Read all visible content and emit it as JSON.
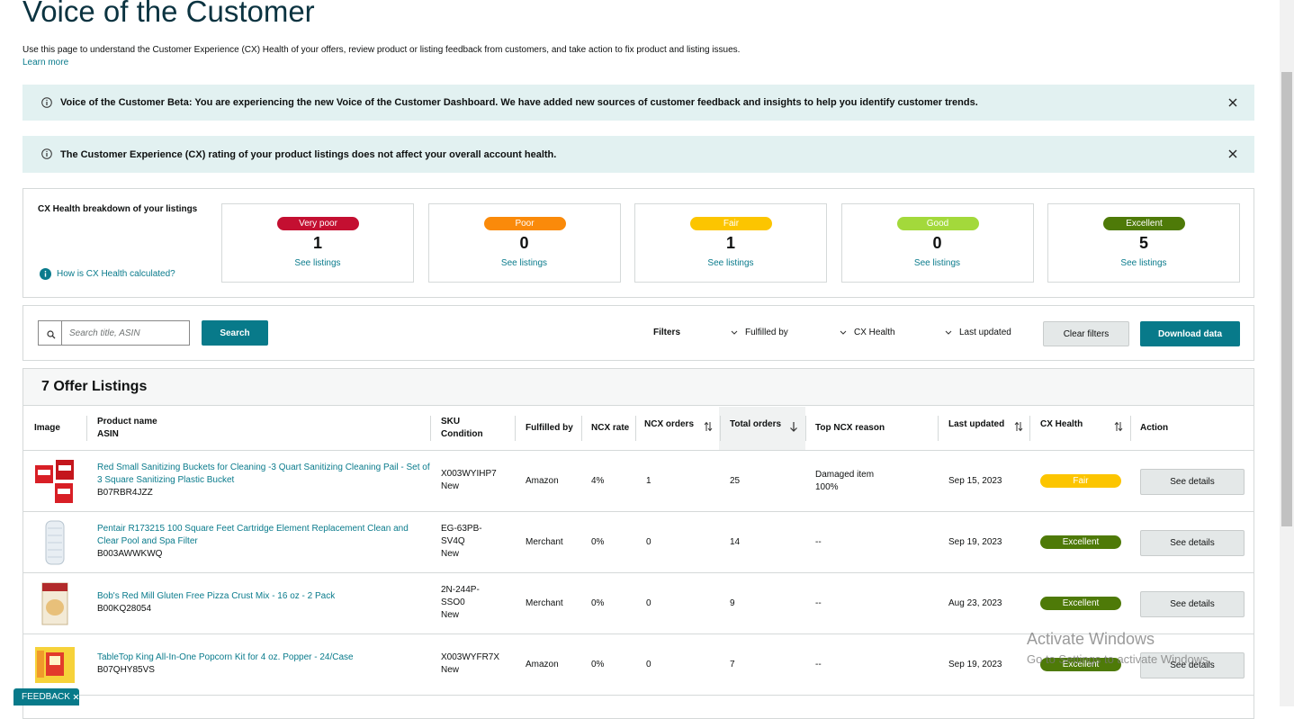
{
  "header": {
    "title": "Voice of the Customer",
    "description": "Use this page to understand the Customer Experience (CX) Health of your offers, review product or listing feedback from customers, and take action to fix product and listing issues.",
    "learn_more": "Learn more"
  },
  "alerts": [
    {
      "text": "Voice of the Customer Beta: You are experiencing the new Voice of the Customer Dashboard. We have added new sources of customer feedback and insights to help you identify customer trends."
    },
    {
      "text": "The Customer Experience (CX) rating of your product listings does not affect your overall account health."
    }
  ],
  "cx_breakdown": {
    "title": "CX Health breakdown of your listings",
    "help_link": "How is CX Health calculated?",
    "cards": [
      {
        "label": "Very poor",
        "count": 1,
        "link": "See listings",
        "color": "#c40f31"
      },
      {
        "label": "Poor",
        "count": 0,
        "link": "See listings",
        "color": "#fa8a0a"
      },
      {
        "label": "Fair",
        "count": 1,
        "link": "See listings",
        "color": "#fcc500"
      },
      {
        "label": "Good",
        "count": 0,
        "link": "See listings",
        "color": "#a3d93b"
      },
      {
        "label": "Excellent",
        "count": 5,
        "link": "See listings",
        "color": "#4e7a08"
      }
    ]
  },
  "toolbar": {
    "search_placeholder": "Search title, ASIN",
    "search_button": "Search",
    "filters_label": "Filters",
    "filters": [
      "Fulfilled by",
      "CX Health",
      "Last updated"
    ],
    "clear_filters": "Clear filters",
    "download": "Download data"
  },
  "table": {
    "title": "7 Offer Listings",
    "columns": [
      {
        "label": "Image"
      },
      {
        "label": "Product name",
        "sub": "ASIN"
      },
      {
        "label": "SKU",
        "sub": "Condition"
      },
      {
        "label": "Fulfilled by"
      },
      {
        "label": "NCX rate"
      },
      {
        "label": "NCX orders"
      },
      {
        "label": "Total orders"
      },
      {
        "label": "Top NCX reason"
      },
      {
        "label": "Last updated"
      },
      {
        "label": "CX Health"
      },
      {
        "label": "Action"
      }
    ],
    "rows": [
      {
        "product": "Red Small Sanitizing Buckets for Cleaning -3 Quart Sanitizing Cleaning Pail - Set of 3 Square Sanitizing Plastic Bucket",
        "asin": "B07RBR4JZZ",
        "sku": "X003WYIHP7",
        "condition": "New",
        "fulfilled_by": "Amazon",
        "ncx_rate": "4%",
        "ncx_orders": "1",
        "total_orders": "25",
        "top_ncx_reason": [
          "Damaged item",
          "100%"
        ],
        "last_updated": "Sep 15, 2023",
        "cx_health": "Fair",
        "health_color": "#fcc500",
        "action": "See details"
      },
      {
        "product": "Pentair R173215 100 Square Feet Cartridge Element Replacement Clean and Clear Pool and Spa Filter",
        "asin": "B003AWWKWQ",
        "sku": "EG-63PB-SV4Q",
        "condition": "New",
        "fulfilled_by": "Merchant",
        "ncx_rate": "0%",
        "ncx_orders": "0",
        "total_orders": "14",
        "top_ncx_reason": [
          "--"
        ],
        "last_updated": "Sep 19, 2023",
        "cx_health": "Excellent",
        "health_color": "#4e7a08",
        "action": "See details"
      },
      {
        "product": "Bob's Red Mill Gluten Free Pizza Crust Mix - 16 oz - 2 Pack",
        "asin": "B00KQ28054",
        "sku": "2N-244P-SSO0",
        "condition": "New",
        "fulfilled_by": "Merchant",
        "ncx_rate": "0%",
        "ncx_orders": "0",
        "total_orders": "9",
        "top_ncx_reason": [
          "--"
        ],
        "last_updated": "Aug 23, 2023",
        "cx_health": "Excellent",
        "health_color": "#4e7a08",
        "action": "See details"
      },
      {
        "product": "TableTop King All-In-One Popcorn Kit for 4 oz. Popper - 24/Case",
        "asin": "B07QHY85VS",
        "sku": "X003WYFR7X",
        "condition": "New",
        "fulfilled_by": "Amazon",
        "ncx_rate": "0%",
        "ncx_orders": "0",
        "total_orders": "7",
        "top_ncx_reason": [
          "--"
        ],
        "last_updated": "Sep 19, 2023",
        "cx_health": "Excellent",
        "health_color": "#4e7a08",
        "action": "See details"
      }
    ]
  },
  "feedback": "FEEDBACK",
  "watermark": {
    "title": "Activate Windows",
    "subtitle": "Go to Settings to activate Windows."
  }
}
